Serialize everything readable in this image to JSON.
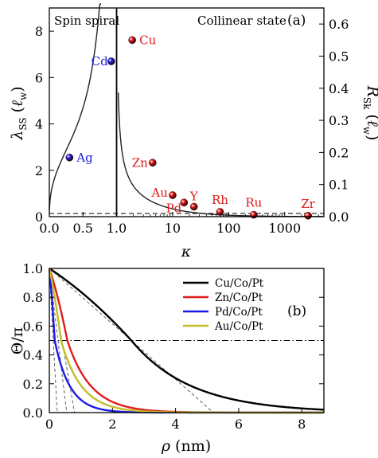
{
  "figure": {
    "panel_a_label": "(a)",
    "panel_b_label": "(b)"
  },
  "chart_data": [
    {
      "type": "scatter",
      "panel": "(a)",
      "x_scale": "linear in κ for 0 ≤ κ ≤ 1, logarithmic in κ for κ ≥ 1",
      "xlabel": "κ",
      "ylabel_left": "λSS (ℓw)",
      "ylabel_right": "RSk (ℓw)",
      "xticks": [
        "0.0",
        "0.5",
        "1.0",
        "10",
        "100",
        "1000"
      ],
      "yticks_left": [
        "0",
        "2",
        "4",
        "6",
        "8"
      ],
      "yticks_right": [
        "0.0",
        "0.1",
        "0.2",
        "0.3",
        "0.4",
        "0.5",
        "0.6"
      ],
      "ylim_left": [
        0,
        9
      ],
      "ylim_right": [
        0,
        0.65
      ],
      "xlim": [
        0,
        5000
      ],
      "region_labels": {
        "left": "Spin spiral",
        "right": "Collinear state"
      },
      "curves": [
        {
          "region": "spin-spiral",
          "y_axis": "left",
          "relation": "λSS vs κ, diverging as κ → 1"
        },
        {
          "region": "collinear",
          "y_axis": "right",
          "relation": "RSk vs κ, diverging as κ → 1⁺"
        }
      ],
      "reference_lines": [
        {
          "type": "vertical",
          "x": 1.0,
          "style": "solid"
        },
        {
          "type": "horizontal",
          "y": 0,
          "style": "dashed"
        }
      ],
      "points": [
        {
          "label": "Ag",
          "kappa": 0.3,
          "value": 2.55,
          "axis": "left",
          "color": "#2222dd"
        },
        {
          "label": "Cd",
          "kappa": 0.92,
          "value": 6.7,
          "axis": "left",
          "color": "#2222dd"
        },
        {
          "label": "Cu",
          "kappa": 1.9,
          "value": 0.55,
          "axis": "right",
          "color": "#dd1a1a"
        },
        {
          "label": "Zn",
          "kappa": 4.4,
          "value": 0.168,
          "axis": "right",
          "color": "#dd1a1a"
        },
        {
          "label": "Au",
          "kappa": 10,
          "value": 0.067,
          "axis": "right",
          "color": "#dd1a1a"
        },
        {
          "label": "Pd",
          "kappa": 16,
          "value": 0.044,
          "axis": "right",
          "color": "#dd1a1a"
        },
        {
          "label": "Y",
          "kappa": 24,
          "value": 0.031,
          "axis": "right",
          "color": "#dd1a1a"
        },
        {
          "label": "Rh",
          "kappa": 70,
          "value": 0.015,
          "axis": "right",
          "color": "#dd1a1a"
        },
        {
          "label": "Ru",
          "kappa": 280,
          "value": 0.006,
          "axis": "right",
          "color": "#dd1a1a"
        },
        {
          "label": "Zr",
          "kappa": 2600,
          "value": 0.003,
          "axis": "right",
          "color": "#dd1a1a"
        }
      ]
    },
    {
      "type": "line",
      "panel": "(b)",
      "xlabel": "ρ (nm)",
      "ylabel": "Θ/π",
      "xlim": [
        0,
        8.7
      ],
      "ylim": [
        0,
        1.0
      ],
      "xticks": [
        "0",
        "2",
        "4",
        "6",
        "8"
      ],
      "yticks": [
        "0.0",
        "0.2",
        "0.4",
        "0.6",
        "0.8",
        "1.0"
      ],
      "legend_position": "top-right",
      "reference_line": {
        "y": 0.5,
        "style": "dash-dot"
      },
      "series": [
        {
          "name": "Cu/Co/Pt",
          "color": "#000000",
          "line_width": 2.4,
          "rho_half": 2.6,
          "skyrmion_radius": 5.2,
          "tail_scale": 1.9
        },
        {
          "name": "Zn/Co/Pt",
          "color": "#e01c1c",
          "line_width": 2.4,
          "rho_half": 0.57,
          "skyrmion_radius": 0.8,
          "tail_scale": 0.75
        },
        {
          "name": "Pd/Co/Pt",
          "color": "#1a1ae6",
          "line_width": 2.4,
          "rho_half": 0.17,
          "skyrmion_radius": 0.25,
          "tail_scale": 0.48
        },
        {
          "name": "Au/Co/Pt",
          "color": "#c2bd2a",
          "line_width": 2.4,
          "rho_half": 0.37,
          "skyrmion_radius": 0.55,
          "tail_scale": 0.65
        }
      ]
    }
  ]
}
